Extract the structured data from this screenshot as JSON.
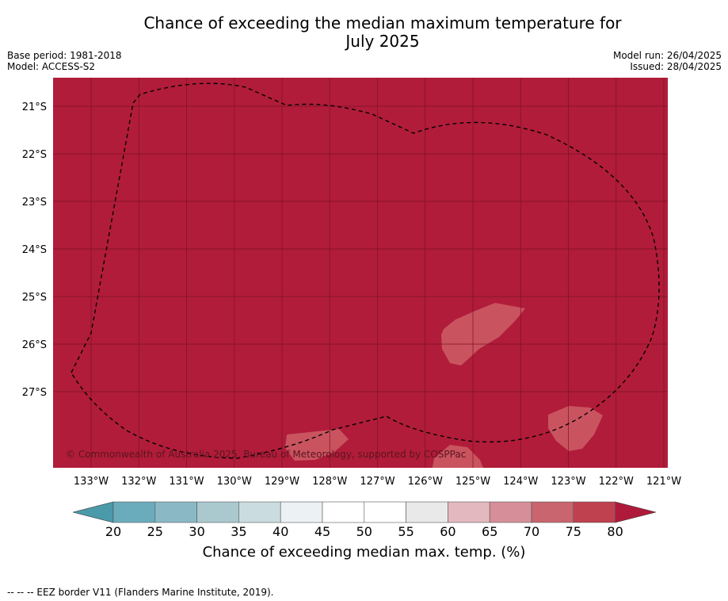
{
  "title_line1": "Chance of exceeding the median maximum temperature for",
  "title_line2": "July 2025",
  "meta_left": {
    "base_period": "Base period: 1981-2018",
    "model": "Model: ACCESS-S2"
  },
  "meta_right": {
    "model_run": "Model run: 26/04/2025",
    "issued": "Issued: 28/04/2025"
  },
  "copyright": "© Commonwealth of Australia 2025, Bureau of Meteorology, supported by COSPPac",
  "footer": "--  --  -- EEZ border V11 (Flanders Marine Institute, 2019).",
  "map": {
    "lon_labels": [
      "133°W",
      "132°W",
      "131°W",
      "130°W",
      "129°W",
      "128°W",
      "127°W",
      "126°W",
      "125°W",
      "124°W",
      "123°W",
      "122°W",
      "121°W"
    ],
    "lat_labels": [
      "21°S",
      "22°S",
      "23°S",
      "24°S",
      "25°S",
      "26°S",
      "27°S"
    ],
    "background_color": "#b11c3a"
  },
  "colorbar": {
    "title": "Chance of exceeding median max. temp. (%)",
    "ticks": [
      "20",
      "25",
      "30",
      "35",
      "40",
      "45",
      "50",
      "55",
      "60",
      "65",
      "70",
      "75",
      "80"
    ],
    "colors": [
      "#6aacbc",
      "#8ab9c5",
      "#a9c9cf",
      "#cbdce0",
      "#ecf1f3",
      "#ffffff",
      "#ffffff",
      "#e9e9e9",
      "#e4b8bf",
      "#d68e98",
      "#c8656f",
      "#bf404f"
    ],
    "under_color": "#4a9aaa",
    "over_color": "#b01a3a"
  }
}
